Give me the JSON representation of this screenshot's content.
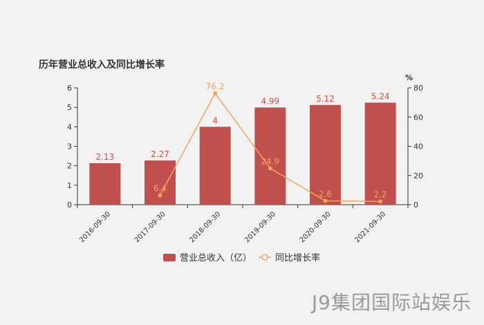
{
  "chart_data": {
    "type": "bar",
    "title": "历年营业总收入及同比增长率",
    "categories": [
      "2016-09-30",
      "2017-09-30",
      "2018-09-30",
      "2019-09-30",
      "2020-09-30",
      "2021-09-30"
    ],
    "series": [
      {
        "name": "营业总收入（亿）",
        "type": "bar",
        "axis": "left",
        "values": [
          2.13,
          2.27,
          4,
          4.99,
          5.12,
          5.24
        ],
        "labels": [
          "2.13",
          "2.27",
          "4",
          "4.99",
          "5.12",
          "5.24"
        ],
        "color": "#c0504d"
      },
      {
        "name": "同比增长率",
        "type": "line",
        "axis": "right",
        "values": [
          null,
          6.4,
          76.2,
          24.9,
          2.6,
          2.2
        ],
        "labels": [
          "",
          "6.4",
          "76.2",
          "24.9",
          "2.6",
          "2.2"
        ],
        "color": "#f5a25d"
      }
    ],
    "y_left": {
      "min": 0,
      "max": 6,
      "ticks": [
        "0",
        "1",
        "2",
        "3",
        "4",
        "5",
        "6"
      ]
    },
    "y_right": {
      "min": 0,
      "max": 80,
      "ticks": [
        "0",
        "20",
        "40",
        "60",
        "80"
      ],
      "unit": "%"
    },
    "legend_position": "bottom-center",
    "grid": false
  },
  "watermark": "J9集团国际站娱乐"
}
